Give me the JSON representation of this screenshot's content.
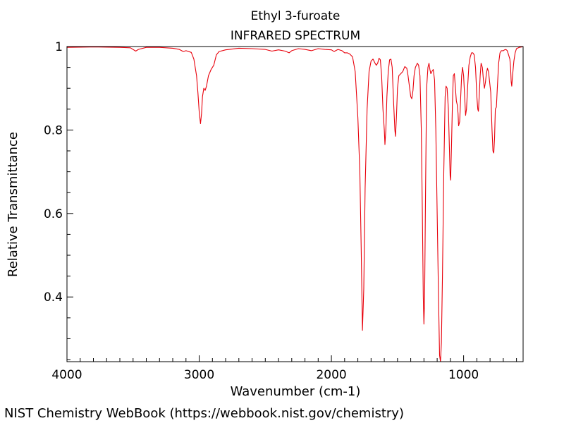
{
  "chart_data": {
    "type": "line",
    "title": "Ethyl 3-furoate",
    "subtitle": "INFRARED SPECTRUM",
    "xlabel": "Wavenumber (cm-1)",
    "ylabel": "Relative Transmittance",
    "xlim": [
      4000,
      550
    ],
    "ylim": [
      0.245,
      1.0
    ],
    "x_reversed": true,
    "x_ticks": [
      4000,
      3000,
      2000,
      1000
    ],
    "x_tick_labels": [
      "4000",
      "3000",
      "2000",
      "1000"
    ],
    "y_ticks": [
      0.4,
      0.6,
      0.8,
      1.0
    ],
    "y_tick_labels": [
      "0.4",
      "0.6",
      "0.8",
      "1"
    ],
    "grid": false,
    "line_color": "#e8000b",
    "series": [
      {
        "name": "",
        "points": [
          [
            4000,
            0.998
          ],
          [
            3800,
            0.999
          ],
          [
            3600,
            0.998
          ],
          [
            3520,
            0.997
          ],
          [
            3480,
            0.989
          ],
          [
            3460,
            0.993
          ],
          [
            3400,
            0.998
          ],
          [
            3300,
            0.998
          ],
          [
            3200,
            0.996
          ],
          [
            3150,
            0.993
          ],
          [
            3120,
            0.988
          ],
          [
            3100,
            0.99
          ],
          [
            3060,
            0.986
          ],
          [
            3040,
            0.97
          ],
          [
            3020,
            0.93
          ],
          [
            3010,
            0.89
          ],
          [
            3000,
            0.845
          ],
          [
            2990,
            0.815
          ],
          [
            2982,
            0.84
          ],
          [
            2975,
            0.88
          ],
          [
            2965,
            0.9
          ],
          [
            2955,
            0.895
          ],
          [
            2945,
            0.905
          ],
          [
            2930,
            0.93
          ],
          [
            2910,
            0.945
          ],
          [
            2890,
            0.955
          ],
          [
            2870,
            0.98
          ],
          [
            2850,
            0.988
          ],
          [
            2800,
            0.992
          ],
          [
            2700,
            0.996
          ],
          [
            2600,
            0.995
          ],
          [
            2500,
            0.993
          ],
          [
            2450,
            0.989
          ],
          [
            2400,
            0.992
          ],
          [
            2350,
            0.989
          ],
          [
            2320,
            0.985
          ],
          [
            2300,
            0.99
          ],
          [
            2250,
            0.995
          ],
          [
            2200,
            0.993
          ],
          [
            2150,
            0.99
          ],
          [
            2100,
            0.995
          ],
          [
            2050,
            0.993
          ],
          [
            2000,
            0.992
          ],
          [
            1980,
            0.988
          ],
          [
            1950,
            0.993
          ],
          [
            1920,
            0.99
          ],
          [
            1900,
            0.985
          ],
          [
            1880,
            0.985
          ],
          [
            1860,
            0.982
          ],
          [
            1840,
            0.975
          ],
          [
            1820,
            0.94
          ],
          [
            1800,
            0.83
          ],
          [
            1785,
            0.7
          ],
          [
            1775,
            0.52
          ],
          [
            1765,
            0.32
          ],
          [
            1755,
            0.42
          ],
          [
            1745,
            0.66
          ],
          [
            1730,
            0.85
          ],
          [
            1715,
            0.94
          ],
          [
            1700,
            0.965
          ],
          [
            1685,
            0.97
          ],
          [
            1670,
            0.96
          ],
          [
            1660,
            0.955
          ],
          [
            1650,
            0.96
          ],
          [
            1640,
            0.972
          ],
          [
            1630,
            0.968
          ],
          [
            1620,
            0.93
          ],
          [
            1610,
            0.85
          ],
          [
            1600,
            0.8
          ],
          [
            1595,
            0.765
          ],
          [
            1588,
            0.8
          ],
          [
            1580,
            0.88
          ],
          [
            1570,
            0.94
          ],
          [
            1560,
            0.968
          ],
          [
            1550,
            0.97
          ],
          [
            1540,
            0.95
          ],
          [
            1530,
            0.87
          ],
          [
            1520,
            0.8
          ],
          [
            1515,
            0.785
          ],
          [
            1508,
            0.83
          ],
          [
            1500,
            0.9
          ],
          [
            1490,
            0.93
          ],
          [
            1475,
            0.935
          ],
          [
            1460,
            0.94
          ],
          [
            1445,
            0.952
          ],
          [
            1430,
            0.948
          ],
          [
            1420,
            0.93
          ],
          [
            1410,
            0.905
          ],
          [
            1400,
            0.88
          ],
          [
            1392,
            0.875
          ],
          [
            1383,
            0.895
          ],
          [
            1375,
            0.93
          ],
          [
            1365,
            0.95
          ],
          [
            1350,
            0.96
          ],
          [
            1340,
            0.955
          ],
          [
            1330,
            0.93
          ],
          [
            1320,
            0.8
          ],
          [
            1312,
            0.6
          ],
          [
            1305,
            0.4
          ],
          [
            1300,
            0.335
          ],
          [
            1295,
            0.4
          ],
          [
            1288,
            0.65
          ],
          [
            1280,
            0.9
          ],
          [
            1270,
            0.95
          ],
          [
            1262,
            0.96
          ],
          [
            1255,
            0.945
          ],
          [
            1248,
            0.935
          ],
          [
            1240,
            0.94
          ],
          [
            1230,
            0.945
          ],
          [
            1220,
            0.92
          ],
          [
            1210,
            0.8
          ],
          [
            1200,
            0.6
          ],
          [
            1190,
            0.4
          ],
          [
            1182,
            0.26
          ],
          [
            1175,
            0.245
          ],
          [
            1168,
            0.29
          ],
          [
            1160,
            0.45
          ],
          [
            1150,
            0.7
          ],
          [
            1140,
            0.88
          ],
          [
            1133,
            0.905
          ],
          [
            1125,
            0.9
          ],
          [
            1115,
            0.85
          ],
          [
            1108,
            0.76
          ],
          [
            1102,
            0.69
          ],
          [
            1098,
            0.68
          ],
          [
            1092,
            0.76
          ],
          [
            1085,
            0.86
          ],
          [
            1078,
            0.93
          ],
          [
            1070,
            0.935
          ],
          [
            1062,
            0.9
          ],
          [
            1055,
            0.87
          ],
          [
            1048,
            0.86
          ],
          [
            1042,
            0.84
          ],
          [
            1038,
            0.81
          ],
          [
            1030,
            0.82
          ],
          [
            1022,
            0.88
          ],
          [
            1015,
            0.93
          ],
          [
            1008,
            0.95
          ],
          [
            1000,
            0.93
          ],
          [
            992,
            0.88
          ],
          [
            985,
            0.835
          ],
          [
            978,
            0.85
          ],
          [
            970,
            0.9
          ],
          [
            960,
            0.955
          ],
          [
            950,
            0.975
          ],
          [
            940,
            0.985
          ],
          [
            930,
            0.985
          ],
          [
            920,
            0.98
          ],
          [
            910,
            0.95
          ],
          [
            900,
            0.88
          ],
          [
            893,
            0.85
          ],
          [
            888,
            0.845
          ],
          [
            882,
            0.88
          ],
          [
            875,
            0.93
          ],
          [
            868,
            0.96
          ],
          [
            858,
            0.95
          ],
          [
            850,
            0.92
          ],
          [
            843,
            0.9
          ],
          [
            835,
            0.915
          ],
          [
            828,
            0.935
          ],
          [
            820,
            0.948
          ],
          [
            812,
            0.94
          ],
          [
            805,
            0.92
          ],
          [
            795,
            0.89
          ],
          [
            785,
            0.8
          ],
          [
            778,
            0.75
          ],
          [
            772,
            0.745
          ],
          [
            766,
            0.78
          ],
          [
            760,
            0.85
          ],
          [
            752,
            0.855
          ],
          [
            745,
            0.9
          ],
          [
            735,
            0.96
          ],
          [
            725,
            0.985
          ],
          [
            715,
            0.99
          ],
          [
            700,
            0.99
          ],
          [
            690,
            0.992
          ],
          [
            680,
            0.993
          ],
          [
            670,
            0.99
          ],
          [
            660,
            0.98
          ],
          [
            650,
            0.97
          ],
          [
            645,
            0.95
          ],
          [
            640,
            0.915
          ],
          [
            636,
            0.905
          ],
          [
            630,
            0.93
          ],
          [
            620,
            0.965
          ],
          [
            610,
            0.985
          ],
          [
            600,
            0.995
          ],
          [
            580,
            0.998
          ],
          [
            560,
            0.999
          ],
          [
            550,
            1.0
          ]
        ]
      }
    ]
  },
  "footer": {
    "credit": "NIST Chemistry WebBook (https://webbook.nist.gov/chemistry)"
  }
}
